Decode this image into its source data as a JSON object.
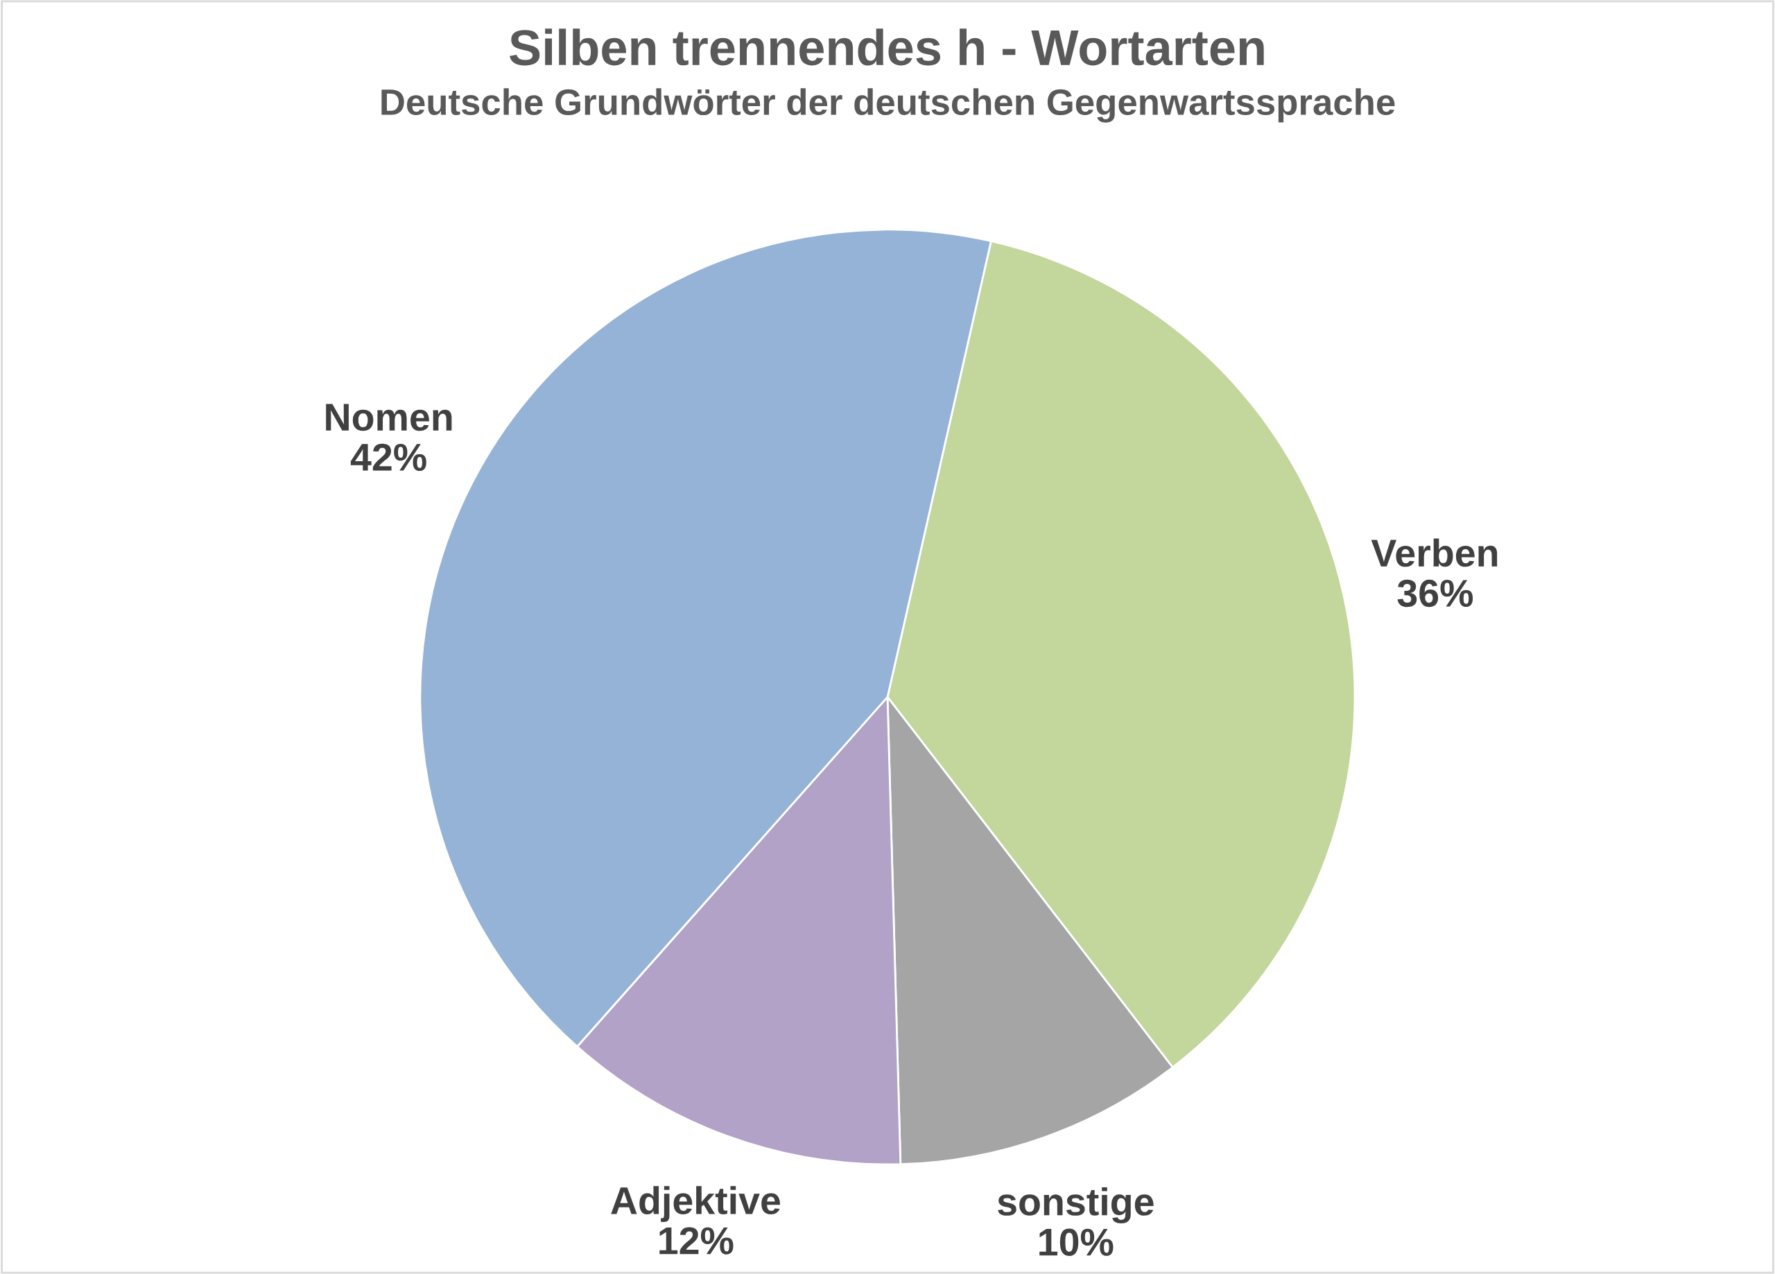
{
  "chart_data": {
    "type": "pie",
    "title": "Silben trennendes h - Wortarten",
    "subtitle": "Deutsche Grundwörter der deutschen Gegenwartssprache",
    "categories": [
      "Verben",
      "sonstige",
      "Adjektive",
      "Nomen"
    ],
    "values": [
      36,
      10,
      12,
      42
    ],
    "value_labels": [
      "36%",
      "10%",
      "12%",
      "42%"
    ],
    "colors": [
      "#c3d69b",
      "#a5a5a5",
      "#b2a2c7",
      "#95b3d7"
    ],
    "legend": false
  }
}
